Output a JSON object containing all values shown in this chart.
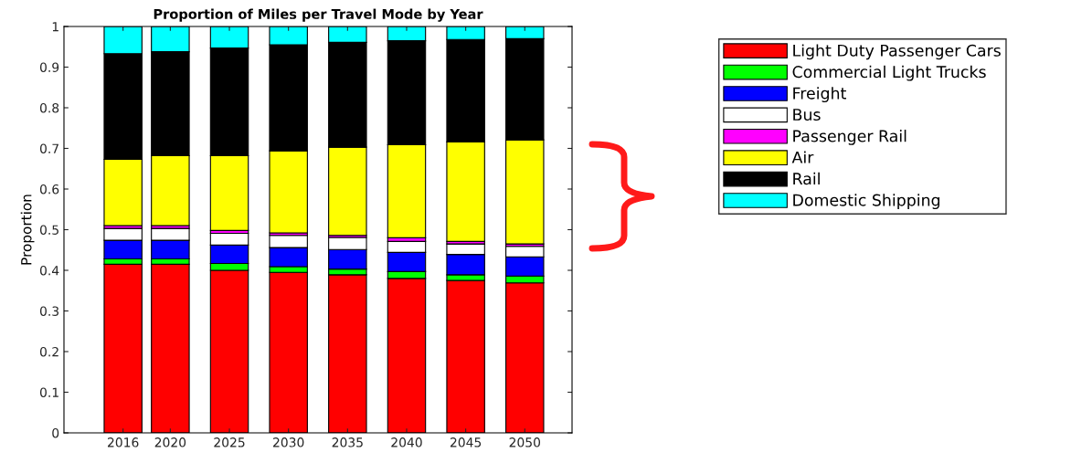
{
  "chart_data": {
    "type": "bar",
    "stacked": true,
    "title": "Proportion of Miles per Travel Mode by Year",
    "ylabel": "Proportion",
    "x": [
      2016,
      2020,
      2025,
      2030,
      2035,
      2040,
      2045,
      2050
    ],
    "xlim": [
      2011,
      2054
    ],
    "xticks": [
      2016,
      2020,
      2025,
      2030,
      2035,
      2040,
      2045,
      2050
    ],
    "ylim": [
      0,
      1
    ],
    "yticks": [
      0,
      0.1,
      0.2,
      0.3,
      0.4,
      0.5,
      0.6,
      0.7,
      0.8,
      0.9,
      1
    ],
    "legend": "right",
    "grid": false,
    "series": [
      {
        "name": "Light Duty Passenger Cars",
        "color": "#ff0000",
        "values": [
          0.415,
          0.415,
          0.4,
          0.395,
          0.389,
          0.38,
          0.375,
          0.369
        ]
      },
      {
        "name": "Commercial Light Trucks",
        "color": "#00ff00",
        "values": [
          0.013,
          0.013,
          0.017,
          0.014,
          0.014,
          0.017,
          0.014,
          0.017
        ]
      },
      {
        "name": "Freight",
        "color": "#0000ff",
        "values": [
          0.046,
          0.046,
          0.045,
          0.047,
          0.048,
          0.047,
          0.05,
          0.047
        ]
      },
      {
        "name": "Bus",
        "color": "#ffffff",
        "values": [
          0.029,
          0.029,
          0.029,
          0.03,
          0.03,
          0.027,
          0.026,
          0.026
        ]
      },
      {
        "name": "Passenger Rail",
        "color": "#ff00ff",
        "values": [
          0.007,
          0.007,
          0.007,
          0.006,
          0.005,
          0.009,
          0.006,
          0.006
        ]
      },
      {
        "name": "Air",
        "color": "#ffff00",
        "values": [
          0.163,
          0.172,
          0.184,
          0.202,
          0.217,
          0.229,
          0.245,
          0.256
        ]
      },
      {
        "name": "Rail",
        "color": "#000000",
        "values": [
          0.26,
          0.256,
          0.265,
          0.261,
          0.258,
          0.256,
          0.252,
          0.249
        ]
      },
      {
        "name": "Domestic Shipping",
        "color": "#00ffff",
        "values": [
          0.067,
          0.062,
          0.053,
          0.045,
          0.039,
          0.035,
          0.032,
          0.03
        ]
      }
    ]
  }
}
